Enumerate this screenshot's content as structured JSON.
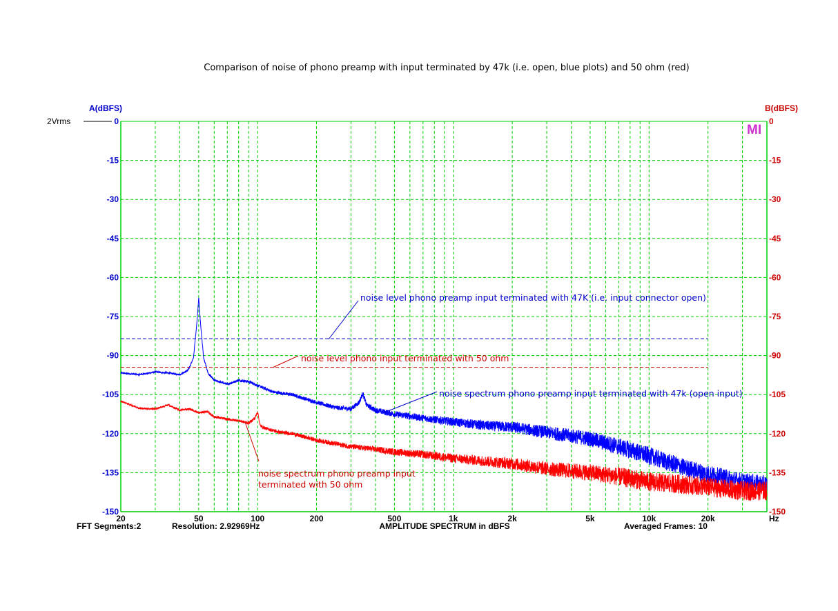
{
  "chart_data": {
    "type": "line",
    "title": "Comparison of noise of phono preamp with input terminated by 47k (i.e. open, blue plots) and 50 ohm (red)",
    "xlabel": "AMPLITUDE SPECTRUM in dBFS",
    "x_unit": "Hz",
    "xscale": "log",
    "xlim": [
      20,
      40000
    ],
    "x_ticks": [
      20,
      50,
      100,
      200,
      500,
      1000,
      2000,
      5000,
      10000,
      20000
    ],
    "x_tick_labels": [
      "20",
      "50",
      "100",
      "200",
      "500",
      "1k",
      "2k",
      "5k",
      "10k",
      "20k"
    ],
    "ylabel_left": "A(dBFS)",
    "ylabel_right": "B(dBFS)",
    "ylim": [
      -150,
      0
    ],
    "y_ticks": [
      0,
      -15,
      -30,
      -45,
      -60,
      -75,
      -90,
      -105,
      -120,
      -135,
      -150
    ],
    "reference_label": "2Vrms",
    "logo": "MI",
    "grid": true,
    "colors": {
      "a_axis": "#0000cc",
      "b_axis": "#cc0000",
      "grid": "#00cc00",
      "open_input": "#0000ff",
      "terminated_50ohm": "#ff0000"
    },
    "footer": {
      "segments": "FFT Segments:2",
      "resolution": "Resolution: 2.92969Hz",
      "frames": "Averaged Frames: 10"
    },
    "series": [
      {
        "color": "#0000ff",
        "points": [
          [
            20,
            -96.7
          ],
          [
            25,
            -97.3
          ],
          [
            30,
            -96.3
          ],
          [
            35,
            -96.7
          ],
          [
            40,
            -97.3
          ],
          [
            44,
            -95.8
          ],
          [
            47,
            -91
          ],
          [
            49,
            -77
          ],
          [
            50,
            -67.6
          ],
          [
            51,
            -77
          ],
          [
            53,
            -91
          ],
          [
            56,
            -97
          ],
          [
            60,
            -99.5
          ],
          [
            70,
            -101
          ],
          [
            80,
            -99.5
          ],
          [
            90,
            -100
          ],
          [
            100,
            -101.5
          ],
          [
            120,
            -104
          ],
          [
            150,
            -105
          ],
          [
            200,
            -108
          ],
          [
            250,
            -110
          ],
          [
            300,
            -110.5
          ],
          [
            330,
            -108
          ],
          [
            345,
            -104.5
          ],
          [
            360,
            -109
          ],
          [
            400,
            -111
          ],
          [
            500,
            -112.5
          ],
          [
            700,
            -114
          ],
          [
            1000,
            -115.5
          ],
          [
            1500,
            -117
          ],
          [
            2000,
            -117.5
          ],
          [
            3000,
            -119.5
          ],
          [
            5000,
            -122
          ],
          [
            7000,
            -125
          ],
          [
            10000,
            -128.5
          ],
          [
            15000,
            -133
          ],
          [
            20000,
            -135.5
          ],
          [
            30000,
            -138.5
          ],
          [
            40000,
            -139.5
          ]
        ],
        "noise": 1.2
      },
      {
        "color": "#ff0000",
        "points": [
          [
            20,
            -107.5
          ],
          [
            25,
            -110.3
          ],
          [
            30,
            -110.5
          ],
          [
            35,
            -109
          ],
          [
            40,
            -111
          ],
          [
            45,
            -110.5
          ],
          [
            50,
            -112
          ],
          [
            55,
            -111.5
          ],
          [
            60,
            -113.5
          ],
          [
            70,
            -114.5
          ],
          [
            80,
            -115
          ],
          [
            90,
            -116
          ],
          [
            97,
            -114
          ],
          [
            100,
            -111.5
          ],
          [
            103,
            -117
          ],
          [
            110,
            -118
          ],
          [
            130,
            -119.5
          ],
          [
            150,
            -120
          ],
          [
            200,
            -122.5
          ],
          [
            300,
            -125
          ],
          [
            400,
            -126
          ],
          [
            500,
            -127
          ],
          [
            700,
            -128
          ],
          [
            1000,
            -129.5
          ],
          [
            2000,
            -131.5
          ],
          [
            3000,
            -133.5
          ],
          [
            5000,
            -135
          ],
          [
            7000,
            -136.5
          ],
          [
            10000,
            -138.5
          ],
          [
            15000,
            -139.5
          ],
          [
            20000,
            -140.5
          ],
          [
            30000,
            -142
          ],
          [
            40000,
            -142
          ]
        ],
        "noise": 1.3
      },
      {
        "color": "#0000cc",
        "style": "dashed",
        "points": [
          [
            20,
            -83.5
          ],
          [
            20000,
            -83.5
          ]
        ]
      },
      {
        "color": "#cc0000",
        "style": "dashed",
        "points": [
          [
            20,
            -94.5
          ],
          [
            20000,
            -94.5
          ]
        ]
      }
    ],
    "annotations": [
      {
        "id": "blue_level",
        "lines": [
          "noise level phono preamp input terminated with 47K (i.e. input connector open)"
        ],
        "color": "#0000cc"
      },
      {
        "id": "red_level",
        "lines": [
          "noise level phono input terminated with 50 ohm"
        ],
        "color": "#cc0000"
      },
      {
        "id": "blue_spectrum",
        "lines": [
          "noise spectrum phono preamp input terminated with 47k (open input)"
        ],
        "color": "#0000cc"
      },
      {
        "id": "red_spectrum",
        "lines": [
          "noise spectrum phono preamp input",
          "terminated with 50 ohm"
        ],
        "color": "#cc0000"
      }
    ]
  }
}
